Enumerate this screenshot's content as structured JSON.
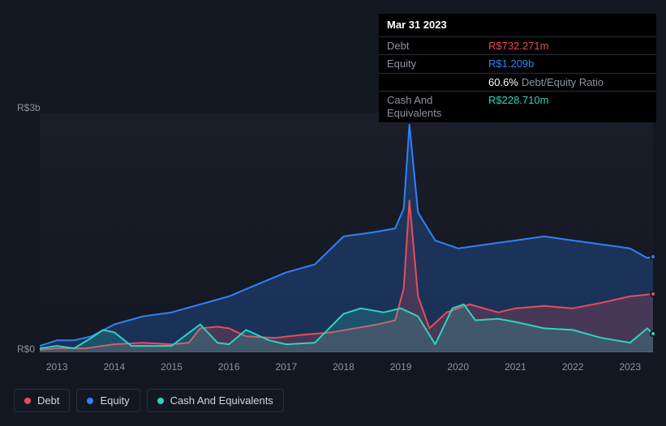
{
  "tooltip": {
    "date": "Mar 31 2023",
    "rows": [
      {
        "label": "Debt",
        "value": "R$732.271m",
        "color": "#e64d5b"
      },
      {
        "label": "Equity",
        "value": "R$1.209b",
        "color": "#2f81f7"
      },
      {
        "label": "",
        "value": "60.6%",
        "suffix": "Debt/Equity Ratio",
        "color": "#ffffff"
      },
      {
        "label": "Cash And Equivalents",
        "value": "R$228.710m",
        "color": "#2dd4bf"
      }
    ]
  },
  "chart": {
    "type": "line",
    "ylim": [
      0,
      3
    ],
    "y_ticks": [
      {
        "pos": 0,
        "label": "R$0"
      },
      {
        "pos": 3,
        "label": "R$3b"
      }
    ],
    "x_ticks": [
      "2013",
      "2014",
      "2015",
      "2016",
      "2017",
      "2018",
      "2019",
      "2020",
      "2021",
      "2022",
      "2023"
    ],
    "x_range": [
      2012.7,
      2023.4
    ],
    "background_color": "#131722",
    "grid_color": "#2a2e39",
    "series": [
      {
        "name": "Equity",
        "color": "#2f81f7",
        "fill_opacity": 0.25,
        "stroke_width": 2,
        "points": [
          [
            2012.7,
            0.08
          ],
          [
            2013.0,
            0.15
          ],
          [
            2013.3,
            0.15
          ],
          [
            2013.6,
            0.2
          ],
          [
            2014.0,
            0.35
          ],
          [
            2014.5,
            0.45
          ],
          [
            2015.0,
            0.5
          ],
          [
            2015.5,
            0.6
          ],
          [
            2016.0,
            0.7
          ],
          [
            2016.5,
            0.85
          ],
          [
            2017.0,
            1.0
          ],
          [
            2017.5,
            1.1
          ],
          [
            2018.0,
            1.45
          ],
          [
            2018.5,
            1.5
          ],
          [
            2018.9,
            1.55
          ],
          [
            2019.05,
            1.8
          ],
          [
            2019.15,
            2.85
          ],
          [
            2019.3,
            1.75
          ],
          [
            2019.6,
            1.4
          ],
          [
            2020.0,
            1.3
          ],
          [
            2020.5,
            1.35
          ],
          [
            2021.0,
            1.4
          ],
          [
            2021.5,
            1.45
          ],
          [
            2022.0,
            1.4
          ],
          [
            2022.5,
            1.35
          ],
          [
            2023.0,
            1.3
          ],
          [
            2023.3,
            1.18
          ],
          [
            2023.4,
            1.2
          ]
        ]
      },
      {
        "name": "Debt",
        "color": "#e64d5b",
        "fill_opacity": 0.22,
        "stroke_width": 2,
        "points": [
          [
            2012.7,
            0.03
          ],
          [
            2013.0,
            0.05
          ],
          [
            2013.5,
            0.05
          ],
          [
            2014.0,
            0.1
          ],
          [
            2014.5,
            0.12
          ],
          [
            2015.0,
            0.1
          ],
          [
            2015.3,
            0.12
          ],
          [
            2015.5,
            0.3
          ],
          [
            2015.8,
            0.32
          ],
          [
            2016.0,
            0.3
          ],
          [
            2016.3,
            0.2
          ],
          [
            2016.8,
            0.18
          ],
          [
            2017.3,
            0.22
          ],
          [
            2017.8,
            0.25
          ],
          [
            2018.2,
            0.3
          ],
          [
            2018.6,
            0.35
          ],
          [
            2018.9,
            0.4
          ],
          [
            2019.05,
            0.8
          ],
          [
            2019.15,
            1.9
          ],
          [
            2019.3,
            0.7
          ],
          [
            2019.5,
            0.3
          ],
          [
            2019.8,
            0.5
          ],
          [
            2020.2,
            0.6
          ],
          [
            2020.7,
            0.5
          ],
          [
            2021.0,
            0.55
          ],
          [
            2021.5,
            0.58
          ],
          [
            2022.0,
            0.55
          ],
          [
            2022.5,
            0.62
          ],
          [
            2023.0,
            0.7
          ],
          [
            2023.4,
            0.73
          ]
        ]
      },
      {
        "name": "Cash And Equivalents",
        "color": "#2dd4bf",
        "fill_opacity": 0.2,
        "stroke_width": 2,
        "points": [
          [
            2012.7,
            0.05
          ],
          [
            2013.0,
            0.08
          ],
          [
            2013.3,
            0.05
          ],
          [
            2013.6,
            0.18
          ],
          [
            2013.8,
            0.28
          ],
          [
            2014.0,
            0.25
          ],
          [
            2014.3,
            0.08
          ],
          [
            2014.7,
            0.08
          ],
          [
            2015.0,
            0.08
          ],
          [
            2015.5,
            0.35
          ],
          [
            2015.8,
            0.12
          ],
          [
            2016.0,
            0.1
          ],
          [
            2016.3,
            0.28
          ],
          [
            2016.7,
            0.15
          ],
          [
            2017.0,
            0.1
          ],
          [
            2017.5,
            0.12
          ],
          [
            2018.0,
            0.48
          ],
          [
            2018.3,
            0.55
          ],
          [
            2018.7,
            0.5
          ],
          [
            2019.0,
            0.55
          ],
          [
            2019.3,
            0.45
          ],
          [
            2019.6,
            0.1
          ],
          [
            2019.9,
            0.55
          ],
          [
            2020.1,
            0.6
          ],
          [
            2020.3,
            0.4
          ],
          [
            2020.7,
            0.42
          ],
          [
            2021.0,
            0.38
          ],
          [
            2021.5,
            0.3
          ],
          [
            2022.0,
            0.28
          ],
          [
            2022.5,
            0.18
          ],
          [
            2023.0,
            0.12
          ],
          [
            2023.3,
            0.3
          ],
          [
            2023.4,
            0.23
          ]
        ]
      }
    ]
  },
  "legend": [
    {
      "label": "Debt",
      "color": "#e64d5b"
    },
    {
      "label": "Equity",
      "color": "#2f81f7"
    },
    {
      "label": "Cash And Equivalents",
      "color": "#2dd4bf"
    }
  ]
}
